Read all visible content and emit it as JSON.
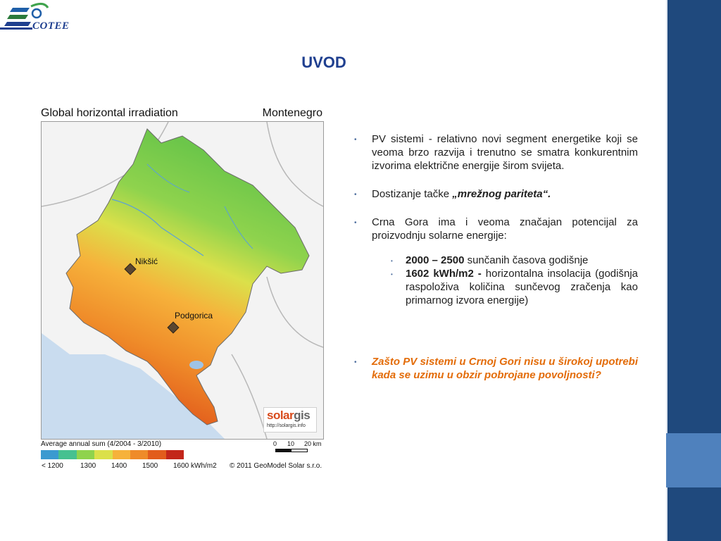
{
  "logo": {
    "text": "COTEE"
  },
  "title": "UVOD",
  "map": {
    "title": "Global horizontal irradiation",
    "country": "Montenegro",
    "cities": [
      {
        "name": "Nikšić"
      },
      {
        "name": "Podgorica"
      }
    ],
    "solargis_word_a": "solar",
    "solargis_word_b": "gis",
    "solargis_url": "http://solargis.info",
    "legend_caption": "Average annual sum (4/2004 - 3/2010)",
    "legend_colors": [
      "#3b9ad0",
      "#46c190",
      "#8fd34d",
      "#dbe04a",
      "#f6b23b",
      "#ef8b29",
      "#e25c1c",
      "#c3261a"
    ],
    "legend_labels": [
      "< 1200",
      "1300",
      "1400",
      "1500",
      "1600 kWh/m2"
    ],
    "scale_labels": [
      "0",
      "10",
      "20 km"
    ],
    "copyright": "© 2011 GeoModel Solar s.r.o."
  },
  "bullets": [
    {
      "text": "PV sistemi - relativno novi segment energetike koji se veoma brzo razvija i trenutno se smatra konkurentnim izvorima električne energije širom svijeta."
    },
    {
      "prefix": "Dostizanje tačke ",
      "emph": "„mrežnog pariteta“."
    },
    {
      "text": "Crna Gora ima i veoma značajan potencijal za proizvodnju solarne energije:"
    }
  ],
  "sub_bullets": [
    {
      "bold": "2000 – 2500",
      "text": " sunčanih časova godišnje"
    },
    {
      "bold": "1602 kWh/m2 -",
      "text": " horizontalna insolacija (godišnja raspoloživa količina sunčevog zračenja kao primarnog izvora energije)"
    }
  ],
  "question": "Zašto PV sistemi u Crnoj Gori nisu u širokoj upotrebi kada se uzimu u obzir pobrojane povoljnosti?",
  "colors": {
    "title": "#1f3f8f",
    "side_bar": "#1f497d",
    "side_accent": "#4f81bd",
    "question": "#e36c09"
  }
}
